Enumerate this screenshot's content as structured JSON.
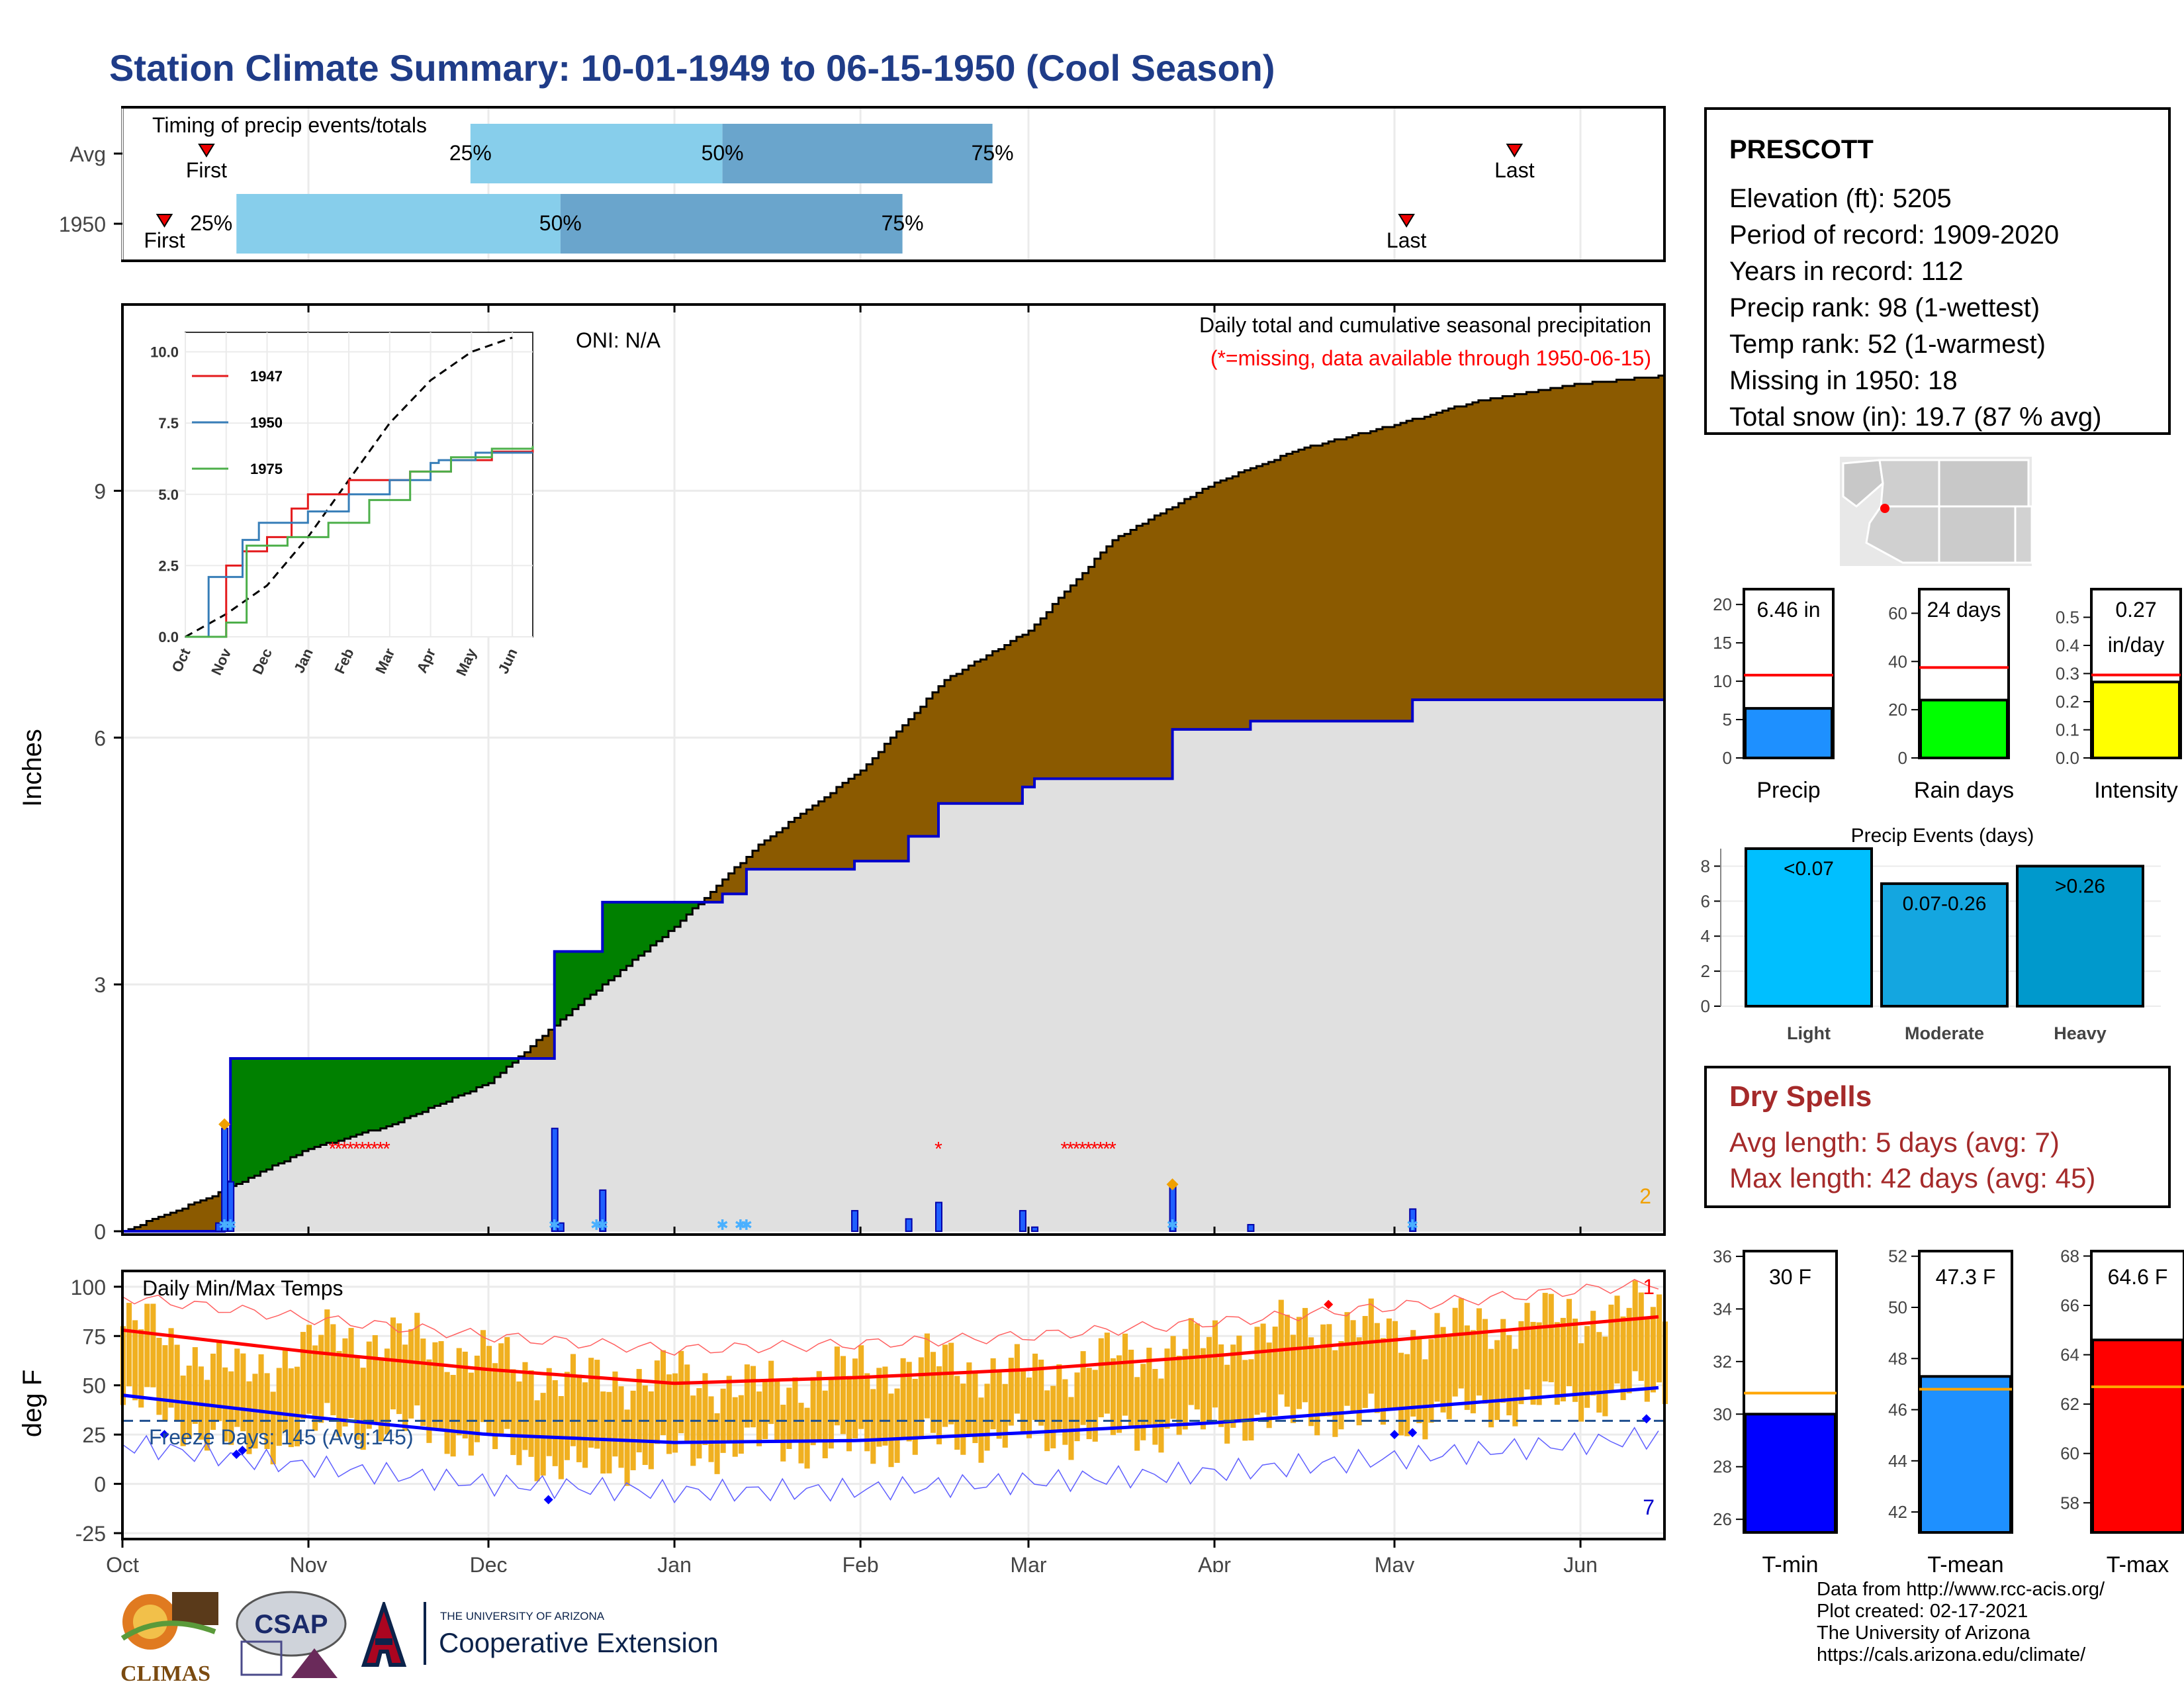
{
  "page_title": "Station Climate Summary: 10-01-1949 to 06-15-1950 (Cool Season)",
  "colors": {
    "title_blue": "#1f3c88",
    "cum_brown": "#8b5a00",
    "cum_green": "#008000",
    "cum_blue_line": "#0000cc",
    "avg_fill_gray": "#e0e0e0",
    "q_light": "#87ceeb",
    "q_dark": "#6aa5cc",
    "temp_bar": "#f0b020",
    "dry_red": "#a52a2a"
  },
  "timing": {
    "title": "Timing of precip events/totals",
    "row_labels": [
      "Avg",
      "1950"
    ],
    "avg": {
      "first": "Oct 15",
      "p25": "Nov 28",
      "p50": "Jan 9",
      "p75": "Feb 23",
      "last": "May 21"
    },
    "y1950": {
      "first": "Oct 8",
      "p25": "Oct 20",
      "p50": "Dec 13",
      "p75": "Feb 8",
      "last": "May 3"
    },
    "labels": {
      "first": "First",
      "last": "Last",
      "p25": "25%",
      "p50": "50%",
      "p75": "75%"
    }
  },
  "main_chart": {
    "ylabel": "Inches",
    "onI": "ONI: N/A",
    "subtitle": "Daily total and cumulative seasonal precipitation",
    "missing_note": "(*=missing, data available through 1950-06-15)",
    "corner_count": "2",
    "y_ticks": [
      "0",
      "3",
      "6",
      "9"
    ]
  },
  "inset": {
    "y_ticks": [
      "0.0",
      "2.5",
      "5.0",
      "7.5",
      "10.0"
    ],
    "x_ticks": [
      "Oct",
      "Nov",
      "Dec",
      "Jan",
      "Feb",
      "Mar",
      "Apr",
      "May",
      "Jun"
    ],
    "legend": [
      {
        "name": "1947",
        "color": "#e41a1c"
      },
      {
        "name": "1950",
        "color": "#377eb8"
      },
      {
        "name": "1975",
        "color": "#4daf4a"
      }
    ]
  },
  "temp_chart": {
    "ylabel": "deg F",
    "title": "Daily Min/Max Temps",
    "freeze_label": "Freeze Days: 145 (Avg:145)",
    "y_ticks": [
      "-25",
      "0",
      "25",
      "50",
      "75",
      "100"
    ],
    "x_ticks": [
      "Oct",
      "Nov",
      "Dec",
      "Jan",
      "Feb",
      "Mar",
      "Apr",
      "May",
      "Jun"
    ],
    "corner_top": "1",
    "corner_bottom": "7"
  },
  "station": {
    "name": "PRESCOTT",
    "lines": [
      "Elevation (ft): 5205",
      "Period of record: 1909-2020",
      "Years in record: 112",
      "Precip rank: 98 (1-wettest)",
      "Temp rank: 52 (1-warmest)",
      "Missing in 1950: 18",
      "Total snow (in): 19.7 (87 % avg)"
    ]
  },
  "mini_bars": [
    {
      "label": "Precip",
      "value_text": "6.46 in",
      "value": 6.46,
      "avg": 10.8,
      "max": 22,
      "ticks": [
        "0",
        "5",
        "10",
        "15",
        "20"
      ],
      "color": "#1e90ff"
    },
    {
      "label": "Rain days",
      "value_text": "24 days",
      "value": 24,
      "avg": 37.5,
      "max": 70,
      "ticks": [
        "0",
        "20",
        "40",
        "60"
      ],
      "color": "#00ff00"
    },
    {
      "label": "Intensity",
      "value_text": "0.27",
      "value_text2": "in/day",
      "value": 0.27,
      "avg": 0.295,
      "max": 0.6,
      "ticks": [
        "0.0",
        "0.1",
        "0.2",
        "0.3",
        "0.4",
        "0.5"
      ],
      "color": "#ffff00"
    }
  ],
  "precip_events": {
    "title": "Precip Events (days)",
    "ticks": [
      "0",
      "2",
      "4",
      "6",
      "8"
    ],
    "bars": [
      {
        "label": "Light",
        "value_label": "<0.07",
        "value": 9,
        "color": "#00bfff"
      },
      {
        "label": "Moderate",
        "value_label": "0.07-0.26",
        "value": 7,
        "color": "#14a6e0"
      },
      {
        "label": "Heavy",
        "value_label": ">0.26",
        "value": 8,
        "color": "#0099cc"
      }
    ]
  },
  "dry_spells": {
    "title": "Dry Spells",
    "avg_line": "Avg length: 5 days (avg: 7)",
    "max_line": "Max length: 42 days (avg: 45)"
  },
  "temp_bars": [
    {
      "label": "T-min",
      "value_text": "30 F",
      "value": 30,
      "avg": 30.8,
      "min": 25.5,
      "max": 36.2,
      "ticks": [
        "26",
        "28",
        "30",
        "32",
        "34",
        "36"
      ],
      "tick_vals": [
        26,
        28,
        30,
        32,
        34,
        36
      ],
      "color": "#0000ff"
    },
    {
      "label": "T-mean",
      "value_text": "47.3 F",
      "value": 47.3,
      "avg": 46.8,
      "min": 41.2,
      "max": 52.2,
      "ticks": [
        "42",
        "44",
        "46",
        "48",
        "50",
        "52"
      ],
      "tick_vals": [
        42,
        44,
        46,
        48,
        50,
        52
      ],
      "color": "#1e90ff"
    },
    {
      "label": "T-max",
      "value_text": "64.6 F",
      "value": 64.6,
      "avg": 62.7,
      "min": 56.8,
      "max": 68.2,
      "ticks": [
        "58",
        "60",
        "62",
        "64",
        "66",
        "68"
      ],
      "tick_vals": [
        58,
        60,
        62,
        64,
        66,
        68
      ],
      "color": "#ff0000"
    }
  ],
  "credits": [
    "Data from http://www.rcc-acis.org/",
    "Plot created: 02-17-2021",
    "The University of Arizona",
    "https://cals.arizona.edu/climate/"
  ],
  "logos": {
    "climas": "CLIMAS",
    "csap": "CSAP",
    "ua_small": "THE UNIVERSITY OF ARIZONA",
    "ua_big": "Cooperative Extension"
  },
  "chart_data": [
    {
      "type": "area",
      "title": "Daily total and cumulative seasonal precipitation",
      "ylabel": "Inches",
      "ylim": [
        0,
        11.2
      ],
      "x_range": [
        "1949-10-01",
        "1950-06-15"
      ],
      "series": [
        {
          "name": "cumulative average",
          "points": [
            [
              "1949-10-01",
              0
            ],
            [
              "1949-10-15",
              0.4
            ],
            [
              "1949-11-01",
              1.0
            ],
            [
              "1949-11-15",
              1.3
            ],
            [
              "1949-12-01",
              1.8
            ],
            [
              "1949-12-15",
              2.7
            ],
            [
              "1950-01-01",
              3.7
            ],
            [
              "1950-01-15",
              4.7
            ],
            [
              "1950-02-01",
              5.6
            ],
            [
              "1950-02-15",
              6.7
            ],
            [
              "1950-03-01",
              7.3
            ],
            [
              "1950-03-15",
              8.4
            ],
            [
              "1950-04-01",
              9.1
            ],
            [
              "1950-04-15",
              9.5
            ],
            [
              "1950-05-01",
              9.8
            ],
            [
              "1950-05-15",
              10.1
            ],
            [
              "1950-06-01",
              10.3
            ],
            [
              "1950-06-15",
              10.4
            ]
          ]
        },
        {
          "name": "cumulative 1950",
          "points": [
            [
              "1949-10-01",
              0
            ],
            [
              "1949-10-17",
              0
            ],
            [
              "1949-10-18",
              0.6
            ],
            [
              "1949-10-19",
              2.1
            ],
            [
              "1949-12-08",
              2.1
            ],
            [
              "1949-12-12",
              3.4
            ],
            [
              "1949-12-19",
              3.4
            ],
            [
              "1949-12-20",
              4.0
            ],
            [
              "1950-01-05",
              4.0
            ],
            [
              "1950-01-09",
              4.1
            ],
            [
              "1950-01-13",
              4.4
            ],
            [
              "1950-01-31",
              4.5
            ],
            [
              "1950-02-09",
              4.8
            ],
            [
              "1950-02-14",
              5.2
            ],
            [
              "1950-02-28",
              5.4
            ],
            [
              "1950-03-02",
              5.5
            ],
            [
              "1950-03-24",
              5.5
            ],
            [
              "1950-03-25",
              6.1
            ],
            [
              "1950-04-07",
              6.2
            ],
            [
              "1950-05-03",
              6.2
            ],
            [
              "1950-05-04",
              6.46
            ],
            [
              "1950-06-15",
              6.46
            ]
          ]
        },
        {
          "name": "daily precipitation",
          "points": [
            [
              "1949-10-17",
              0.1
            ],
            [
              "1949-10-18",
              1.25
            ],
            [
              "1949-10-19",
              0.6
            ],
            [
              "1949-12-12",
              1.25
            ],
            [
              "1949-12-13",
              0.1
            ],
            [
              "1949-12-20",
              0.5
            ],
            [
              "1950-01-31",
              0.25
            ],
            [
              "1950-02-09",
              0.15
            ],
            [
              "1950-02-14",
              0.35
            ],
            [
              "1950-02-28",
              0.25
            ],
            [
              "1950-03-02",
              0.05
            ],
            [
              "1950-03-25",
              0.55
            ],
            [
              "1950-04-07",
              0.08
            ],
            [
              "1950-05-04",
              0.27
            ]
          ]
        }
      ]
    },
    {
      "type": "line",
      "title": "",
      "x_ticks": [
        "Oct",
        "Nov",
        "Dec",
        "Jan",
        "Feb",
        "Mar",
        "Apr",
        "May",
        "Jun"
      ],
      "ylim": [
        0,
        10.5
      ],
      "series": [
        {
          "name": "average",
          "points": [
            [
              0,
              0
            ],
            [
              1,
              0.8
            ],
            [
              2,
              1.8
            ],
            [
              3,
              3.5
            ],
            [
              4,
              5.5
            ],
            [
              5,
              7.5
            ],
            [
              6,
              9.0
            ],
            [
              7,
              10.0
            ],
            [
              8,
              10.5
            ]
          ]
        },
        {
          "name": "1947",
          "points": [
            [
              0,
              0
            ],
            [
              0.7,
              0
            ],
            [
              1.0,
              2.5
            ],
            [
              1.4,
              3.0
            ],
            [
              2.0,
              3.5
            ],
            [
              2.6,
              4.5
            ],
            [
              3.0,
              5.0
            ],
            [
              4.0,
              5.5
            ],
            [
              5.5,
              5.8
            ],
            [
              6.5,
              6.2
            ],
            [
              7.5,
              6.5
            ],
            [
              8.5,
              6.6
            ]
          ]
        },
        {
          "name": "1950",
          "points": [
            [
              0,
              0
            ],
            [
              0.57,
              2.1
            ],
            [
              1.0,
              2.1
            ],
            [
              1.4,
              3.4
            ],
            [
              1.8,
              4.0
            ],
            [
              3.0,
              4.4
            ],
            [
              4.0,
              5.0
            ],
            [
              5.0,
              5.5
            ],
            [
              6.0,
              6.1
            ],
            [
              6.2,
              6.2
            ],
            [
              7.0,
              6.2
            ],
            [
              7.1,
              6.46
            ],
            [
              8.5,
              6.46
            ]
          ]
        },
        {
          "name": "1975",
          "points": [
            [
              0,
              0
            ],
            [
              1.0,
              0.5
            ],
            [
              1.5,
              3.2
            ],
            [
              2.5,
              3.5
            ],
            [
              3.5,
              4.0
            ],
            [
              4.5,
              4.8
            ],
            [
              5.5,
              5.8
            ],
            [
              6.5,
              6.3
            ],
            [
              7.5,
              6.6
            ],
            [
              8.5,
              6.7
            ]
          ]
        }
      ]
    },
    {
      "type": "bar",
      "title": "Daily Min/Max Temps",
      "ylabel": "deg F",
      "ylim": [
        -25,
        105
      ],
      "x_range": [
        "1949-10-01",
        "1950-06-15"
      ],
      "series": [
        {
          "name": "average max",
          "points": [
            [
              "1949-10-01",
              78
            ],
            [
              "1949-11-01",
              67
            ],
            [
              "1949-12-01",
              58
            ],
            [
              "1950-01-01",
              51
            ],
            [
              "1950-02-01",
              54
            ],
            [
              "1950-03-01",
              58
            ],
            [
              "1950-04-01",
              65
            ],
            [
              "1950-05-01",
              73
            ],
            [
              "1950-06-15",
              85
            ]
          ]
        },
        {
          "name": "average min",
          "points": [
            [
              "1949-10-01",
              45
            ],
            [
              "1949-11-01",
              34
            ],
            [
              "1949-12-01",
              25
            ],
            [
              "1950-01-01",
              21
            ],
            [
              "1950-02-01",
              22
            ],
            [
              "1950-03-01",
              26
            ],
            [
              "1950-04-01",
              31
            ],
            [
              "1950-05-01",
              38
            ],
            [
              "1950-06-15",
              49
            ]
          ]
        },
        {
          "name": "daily max",
          "points": [
            [
              "1949-10-05",
              80
            ],
            [
              "1949-10-20",
              55
            ],
            [
              "1949-11-05",
              75
            ],
            [
              "1949-11-20",
              72
            ],
            [
              "1949-12-01",
              64
            ],
            [
              "1949-12-15",
              52
            ],
            [
              "1950-01-01",
              55
            ],
            [
              "1950-01-15",
              48
            ],
            [
              "1950-02-01",
              58
            ],
            [
              "1950-02-15",
              62
            ],
            [
              "1950-03-01",
              55
            ],
            [
              "1950-03-15",
              64
            ],
            [
              "1950-04-01",
              72
            ],
            [
              "1950-04-20",
              82
            ],
            [
              "1950-05-01",
              76
            ],
            [
              "1950-05-20",
              82
            ],
            [
              "1950-06-10",
              88
            ]
          ]
        },
        {
          "name": "daily min",
          "points": [
            [
              "1949-10-05",
              40
            ],
            [
              "1949-10-20",
              18
            ],
            [
              "1949-11-05",
              30
            ],
            [
              "1949-11-20",
              28
            ],
            [
              "1949-12-01",
              20
            ],
            [
              "1949-12-15",
              8
            ],
            [
              "1950-01-01",
              15
            ],
            [
              "1950-01-15",
              20
            ],
            [
              "1950-02-01",
              18
            ],
            [
              "1950-02-15",
              22
            ],
            [
              "1950-03-01",
              24
            ],
            [
              "1950-03-15",
              25
            ],
            [
              "1950-04-01",
              30
            ],
            [
              "1950-04-20",
              35
            ],
            [
              "1950-05-01",
              32
            ],
            [
              "1950-05-20",
              40
            ],
            [
              "1950-06-10",
              45
            ]
          ]
        }
      ]
    }
  ]
}
